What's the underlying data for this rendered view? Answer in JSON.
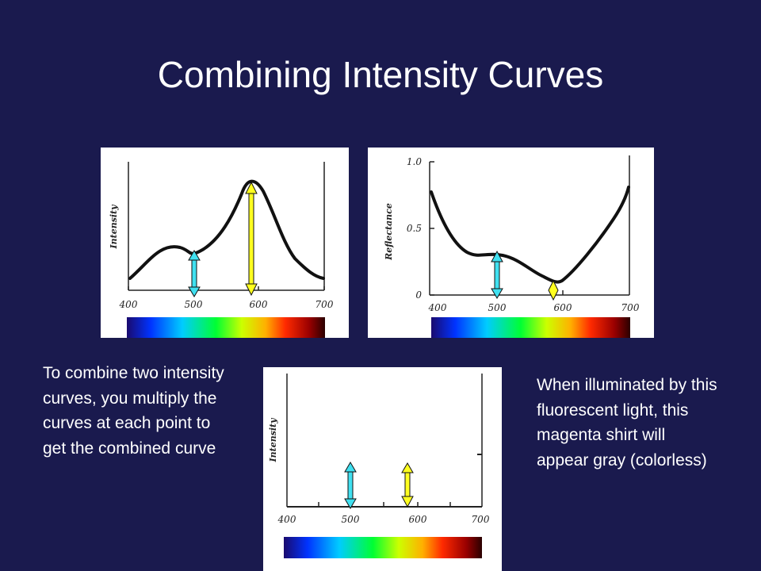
{
  "slide": {
    "title": "Combining Intensity Curves",
    "left_caption": "To combine two intensity curves, you multiply the curves at each point to get the combined curve",
    "right_caption": "When illuminated by this fluorescent light, this magenta shirt will appear gray (colorless)"
  },
  "panels": {
    "light": {
      "ylabel": "Intensity",
      "xticks": [
        "400",
        "500",
        "600",
        "700"
      ]
    },
    "reflectance": {
      "ylabel": "Reflectance",
      "xticks": [
        "400",
        "500",
        "600",
        "700"
      ],
      "yticks": [
        "0",
        "0.5",
        "1.0"
      ]
    },
    "combined": {
      "ylabel": "Intensity",
      "xticks": [
        "400",
        "500",
        "600",
        "700"
      ]
    }
  },
  "colors": {
    "background": "#1a1a4e",
    "arrow_cyan": "#40e0f0",
    "arrow_yellow": "#ffff20"
  },
  "chart_data": [
    {
      "type": "line",
      "ylabel": "Intensity",
      "xlim": [
        400,
        700
      ],
      "x": [
        400,
        460,
        500,
        580,
        640,
        700
      ],
      "y": [
        0.2,
        0.4,
        0.35,
        0.9,
        0.45,
        0.15
      ],
      "arrows": [
        {
          "x": 500,
          "color": "cyan"
        },
        {
          "x": 580,
          "color": "yellow"
        }
      ]
    },
    {
      "type": "line",
      "ylabel": "Reflectance",
      "xlim": [
        400,
        700
      ],
      "ylim": [
        0,
        1.0
      ],
      "x": [
        400,
        450,
        500,
        580,
        640,
        700
      ],
      "y": [
        0.78,
        0.3,
        0.3,
        0.08,
        0.35,
        0.8
      ],
      "arrows": [
        {
          "x": 500,
          "color": "cyan"
        },
        {
          "x": 580,
          "color": "yellow"
        }
      ]
    },
    {
      "type": "line",
      "ylabel": "Intensity",
      "xlim": [
        400,
        700
      ],
      "arrows": [
        {
          "x": 500,
          "color": "cyan"
        },
        {
          "x": 580,
          "color": "yellow"
        }
      ]
    }
  ]
}
